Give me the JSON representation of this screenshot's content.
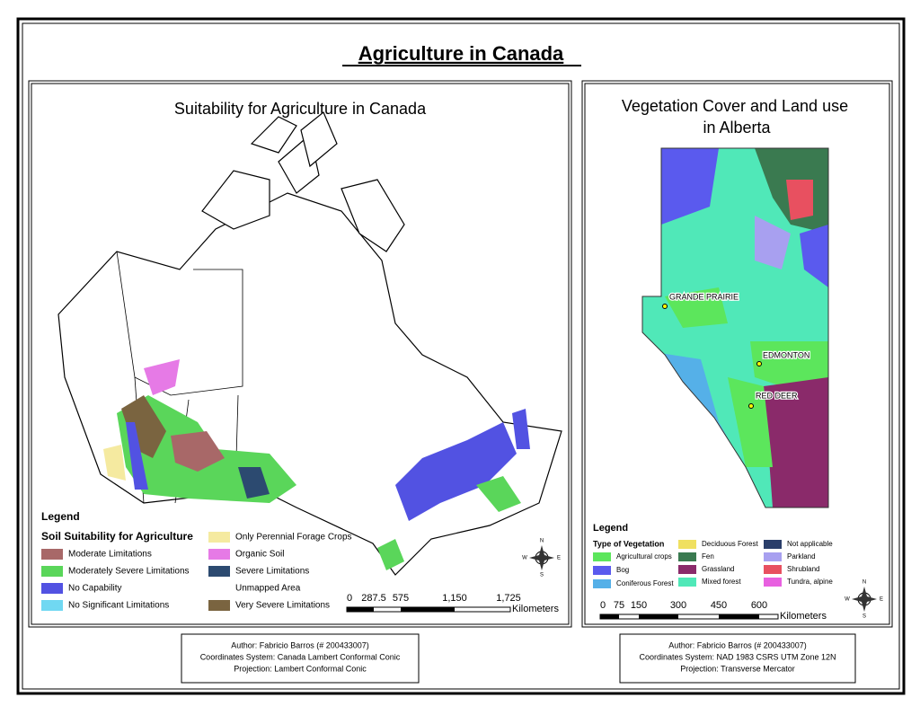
{
  "title": "Agriculture in Canada",
  "left_map": {
    "title": "Suitability for Agriculture in Canada",
    "legend": {
      "heading": "Legend",
      "subheading": "Soil Suitability for Agriculture",
      "items": [
        {
          "label": "Moderate Limitations",
          "color": "#a86868"
        },
        {
          "label": "Moderately Severe Limitations",
          "color": "#5ad65a"
        },
        {
          "label": "No Capability",
          "color": "#5252e2"
        },
        {
          "label": "No Significant Limitations",
          "color": "#70d8f2"
        },
        {
          "label": "Only Perennial Forage Crops",
          "color": "#f5eaa0"
        },
        {
          "label": "Organic Soil",
          "color": "#e67ae6"
        },
        {
          "label": "Severe Limitations",
          "color": "#2c4a70"
        },
        {
          "label": "Unmapped Area"
        },
        {
          "label": "Very Severe Limitations",
          "color": "#7a6440"
        }
      ]
    },
    "scale_bar": {
      "labels": [
        "0",
        "287.5",
        "575",
        "1,150",
        "1,725"
      ],
      "unit": "Kilometers"
    },
    "compass": [
      "N",
      "E",
      "S",
      "W"
    ],
    "credits": [
      "Author: Fabricio Barros (# 200433007)",
      "Coordinates System: Canada Lambert Conformal Conic",
      "Projection: Lambert Conformal Conic"
    ]
  },
  "right_map": {
    "title": [
      "Vegetation Cover and Land use",
      "in Alberta"
    ],
    "cities": [
      "GRANDE PRAIRIE",
      "EDMONTON",
      "RED DEER"
    ],
    "legend": {
      "heading": "Legend",
      "subheading": "Type of Vegetation",
      "items": [
        {
          "label": "Agricultural crops",
          "color": "#5ce65c"
        },
        {
          "label": "Bog",
          "color": "#5a5aee"
        },
        {
          "label": "Coniferous Forest",
          "color": "#55b0e8"
        },
        {
          "label": "Deciduous Forest",
          "color": "#f0e060"
        },
        {
          "label": "Fen",
          "color": "#3a7a50"
        },
        {
          "label": "Grassland",
          "color": "#8a2a6a"
        },
        {
          "label": "Mixed forest",
          "color": "#50e8b8"
        },
        {
          "label": "Not applicable",
          "color": "#2a3e6a"
        },
        {
          "label": "Parkland",
          "color": "#a8a0f0"
        },
        {
          "label": "Shrubland",
          "color": "#e85060"
        },
        {
          "label": "Tundra, alpine",
          "color": "#e860e0"
        }
      ]
    },
    "scale_bar": {
      "labels": [
        "0",
        "75",
        "150",
        "300",
        "450",
        "600"
      ],
      "unit": "Kilometers"
    },
    "compass": [
      "N",
      "E",
      "S",
      "W"
    ],
    "credits": [
      "Author: Fabricio Barros (# 200433007)",
      "Coordinates System: NAD 1983 CSRS UTM Zone 12N",
      "Projection: Transverse Mercator"
    ]
  }
}
